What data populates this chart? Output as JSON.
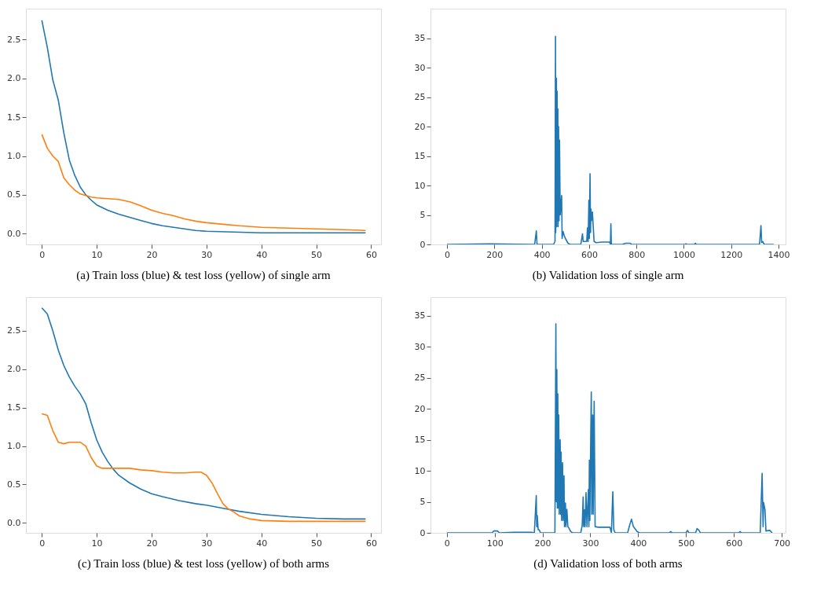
{
  "chart_data": [
    {
      "type": "line",
      "title": "(a) Train loss (blue) & test loss (yellow) of single arm",
      "xlim": [
        -2.9,
        61.8
      ],
      "xticks": [
        0,
        10,
        20,
        30,
        40,
        50,
        60
      ],
      "ylim": [
        -0.14,
        2.9
      ],
      "yticks": [
        {
          "value": 0,
          "label": "0.0"
        },
        0.5,
        {
          "value": 1,
          "label": "1.0"
        },
        1.5,
        {
          "value": 2,
          "label": "2.0"
        },
        2.5
      ],
      "series": [
        {
          "color": "#1f77b4",
          "x": [
            0,
            1,
            2,
            3,
            4,
            5,
            6,
            7,
            8,
            9,
            10,
            12,
            14,
            16,
            18,
            20,
            22,
            25,
            28,
            30,
            35,
            40,
            50,
            59
          ],
          "values": [
            2.75,
            2.4,
            1.98,
            1.72,
            1.3,
            0.95,
            0.75,
            0.6,
            0.5,
            0.43,
            0.37,
            0.3,
            0.25,
            0.21,
            0.17,
            0.13,
            0.1,
            0.07,
            0.04,
            0.03,
            0.02,
            0.01,
            0.01,
            0.01
          ]
        },
        {
          "color": "#ff7f0e",
          "x": [
            0,
            1,
            2,
            3,
            4,
            5,
            6,
            7,
            8,
            9,
            10,
            12,
            14,
            16,
            18,
            20,
            22,
            24,
            26,
            28,
            30,
            33,
            36,
            40,
            45,
            50,
            55,
            59
          ],
          "values": [
            1.28,
            1.1,
            1.0,
            0.93,
            0.72,
            0.63,
            0.56,
            0.51,
            0.49,
            0.47,
            0.46,
            0.45,
            0.44,
            0.41,
            0.36,
            0.3,
            0.26,
            0.23,
            0.19,
            0.16,
            0.14,
            0.12,
            0.1,
            0.08,
            0.07,
            0.06,
            0.05,
            0.04
          ]
        }
      ]
    },
    {
      "type": "line",
      "title": "(b) Validation loss of single arm",
      "xlim": [
        -70,
        1430
      ],
      "xticks": [
        0,
        200,
        400,
        600,
        800,
        1000,
        1200,
        1400
      ],
      "ylim": [
        0,
        40
      ],
      "yticks": [
        0,
        5,
        10,
        15,
        20,
        25,
        30,
        35
      ],
      "series": [
        {
          "color": "#1f77b4",
          "x": [
            0,
            180,
            370,
            377,
            380,
            450,
            456,
            458,
            459,
            462,
            463,
            465,
            466,
            468,
            469,
            471,
            473,
            475,
            478,
            484,
            486,
            490,
            495,
            500,
            511,
            520,
            565,
            572,
            575,
            590,
            593,
            596,
            599,
            601,
            604,
            606,
            608,
            610,
            614,
            621,
            630,
            654,
            670,
            686,
            690,
            692,
            694,
            740,
            755,
            774,
            780,
            1005,
            1009,
            1013,
            1045,
            1049,
            1053,
            1320,
            1326,
            1329,
            1333,
            1340,
            1380
          ],
          "values": [
            0,
            0.1,
            0,
            2.3,
            0,
            0,
            0.5,
            35.3,
            2,
            28.2,
            3,
            26,
            4,
            23,
            3,
            20,
            4,
            17.7,
            5,
            8.3,
            1,
            2.2,
            1.5,
            1,
            0.2,
            0,
            0,
            1.8,
            0.5,
            0.5,
            2.8,
            0.5,
            7.5,
            1,
            12,
            2,
            6,
            4,
            5.5,
            0.5,
            0.3,
            0.4,
            0.4,
            0.4,
            0,
            3.5,
            0,
            0,
            0.2,
            0.2,
            0,
            0,
            0.1,
            0,
            0,
            0.2,
            0,
            0,
            3.2,
            0.3,
            0.5,
            0,
            0
          ]
        }
      ]
    },
    {
      "type": "line",
      "title": "(c) Train loss (blue) & test loss (yellow) of both arms",
      "xlim": [
        -2.9,
        61.8
      ],
      "xticks": [
        0,
        10,
        20,
        30,
        40,
        50,
        60
      ],
      "ylim": [
        -0.13,
        2.94
      ],
      "yticks": [
        {
          "value": 0,
          "label": "0.0"
        },
        0.5,
        {
          "value": 1,
          "label": "1.0"
        },
        1.5,
        {
          "value": 2,
          "label": "2.0"
        },
        2.5
      ],
      "series": [
        {
          "color": "#1f77b4",
          "x": [
            0,
            1,
            2,
            3,
            4,
            5,
            6,
            7,
            8,
            9,
            10,
            11,
            12,
            13,
            14,
            16,
            18,
            20,
            22,
            25,
            28,
            30,
            33,
            36,
            40,
            45,
            50,
            55,
            59
          ],
          "values": [
            2.8,
            2.72,
            2.5,
            2.25,
            2.05,
            1.9,
            1.78,
            1.68,
            1.55,
            1.3,
            1.08,
            0.92,
            0.8,
            0.7,
            0.62,
            0.52,
            0.44,
            0.38,
            0.34,
            0.29,
            0.25,
            0.23,
            0.19,
            0.15,
            0.11,
            0.08,
            0.06,
            0.05,
            0.05
          ]
        },
        {
          "color": "#ff7f0e",
          "x": [
            0,
            1,
            2,
            3,
            4,
            5,
            6,
            7,
            8,
            9,
            10,
            11,
            12,
            14,
            16,
            18,
            20,
            22,
            24,
            26,
            28,
            29,
            30,
            31,
            32,
            33,
            34,
            35,
            36,
            38,
            40,
            45,
            50,
            59
          ],
          "values": [
            1.42,
            1.4,
            1.2,
            1.05,
            1.03,
            1.05,
            1.05,
            1.05,
            1.0,
            0.85,
            0.74,
            0.71,
            0.71,
            0.71,
            0.71,
            0.69,
            0.68,
            0.66,
            0.65,
            0.65,
            0.66,
            0.66,
            0.62,
            0.52,
            0.38,
            0.25,
            0.18,
            0.14,
            0.09,
            0.05,
            0.03,
            0.02,
            0.02,
            0.02
          ]
        }
      ]
    },
    {
      "type": "line",
      "title": "(d) Validation loss of both arms",
      "xlim": [
        -34,
        708
      ],
      "xticks": [
        0,
        100,
        200,
        300,
        400,
        500,
        600,
        700
      ],
      "ylim": [
        0,
        38
      ],
      "yticks": [
        0,
        5,
        10,
        15,
        20,
        25,
        30,
        35
      ],
      "series": [
        {
          "color": "#1f77b4",
          "x": [
            0,
            95,
            98,
            102,
            106,
            110,
            140,
            160,
            177,
            183,
            187,
            188,
            189,
            191,
            193,
            196,
            226,
            228,
            229,
            230,
            231,
            232,
            233,
            234,
            235,
            237,
            238,
            239,
            240,
            242,
            243,
            245,
            246,
            248,
            249,
            251,
            253,
            255,
            259,
            263,
            280,
            283,
            285,
            286,
            288,
            289,
            291,
            293,
            296,
            297,
            298,
            299,
            301,
            302,
            303,
            305,
            306,
            308,
            310,
            317,
            330,
            341,
            344,
            347,
            349,
            352,
            378,
            382,
            386,
            390,
            398,
            403,
            465,
            468,
            471,
            500,
            503,
            506,
            520,
            523,
            527,
            530,
            610,
            613,
            616,
            655,
            659,
            661,
            662,
            665,
            667,
            675,
            680
          ],
          "values": [
            0,
            0,
            0.3,
            0.3,
            0.3,
            0,
            0.1,
            0.1,
            0.1,
            0,
            6.0,
            1,
            2.8,
            0.5,
            0.5,
            0,
            0,
            33.7,
            5,
            26.3,
            4,
            22.4,
            4,
            19,
            3,
            15,
            3,
            13,
            2,
            11.3,
            2,
            9.2,
            1,
            4.8,
            1,
            3.8,
            1,
            0.8,
            0.2,
            0,
            0,
            1.2,
            5.8,
            1,
            3.7,
            1,
            6.5,
            1,
            7,
            1,
            11.7,
            2,
            16.5,
            22.7,
            3,
            19,
            3,
            21.2,
            1,
            0.9,
            0.9,
            0.9,
            0,
            6.6,
            0.5,
            0,
            0,
            1.2,
            2.2,
            1,
            0.2,
            0,
            0,
            0.2,
            0,
            0,
            0.4,
            0,
            0,
            0.7,
            0.4,
            0,
            0,
            0.2,
            0,
            0,
            9.6,
            1,
            4.9,
            3.7,
            0.3,
            0.4,
            0
          ]
        }
      ]
    }
  ]
}
